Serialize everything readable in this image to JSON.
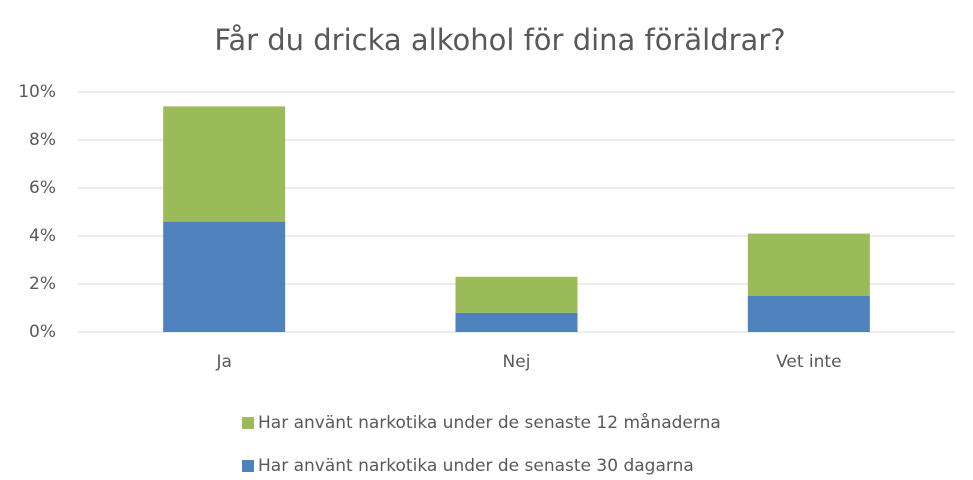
{
  "chart_data": {
    "type": "stacked_bar",
    "title": "Får du dricka alkohol för dina föräldrar?",
    "categories": [
      "Ja",
      "Nej",
      "Vet inte"
    ],
    "series": [
      {
        "name": "Har använt narkotika under de senaste 30 dagarna",
        "color": "#4f81bd",
        "values": [
          4.6,
          0.8,
          1.5
        ]
      },
      {
        "name": "Har använt narkotika under de senaste 12 månaderna",
        "color": "#9bbb59",
        "values": [
          4.8,
          1.5,
          2.6
        ]
      }
    ],
    "ylim": [
      0,
      10
    ],
    "yticks": [
      {
        "value": 0,
        "label": "0%"
      },
      {
        "value": 2,
        "label": "2%"
      },
      {
        "value": 4,
        "label": "4%"
      },
      {
        "value": 6,
        "label": "6%"
      },
      {
        "value": 8,
        "label": "8%"
      },
      {
        "value": 10,
        "label": "10%"
      }
    ],
    "grid": true
  }
}
